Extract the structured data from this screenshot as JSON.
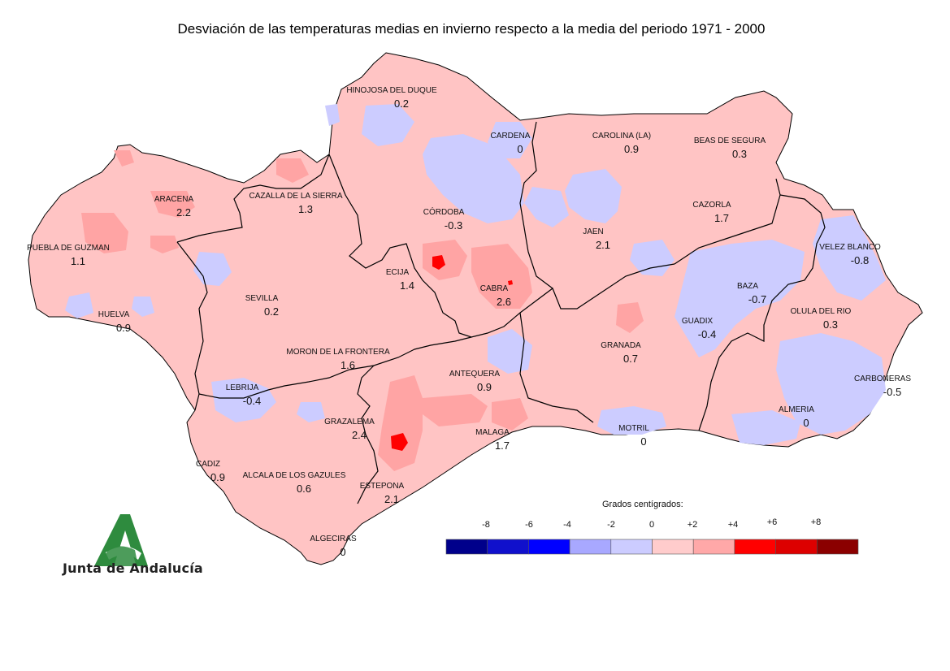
{
  "title": "Desviación de las temperaturas medias en invierno respecto a la media del periodo 1971 - 2000",
  "legend": {
    "title": "Grados centígrados:",
    "ticks": [
      "-8",
      "-6",
      "-4",
      "-2",
      "0",
      "+2",
      "+4",
      "+6",
      "+8"
    ],
    "colors": [
      "#00008b",
      "#1010cc",
      "#0000ff",
      "#a8a8ff",
      "#ccccff",
      "#ffcccc",
      "#ffa8a8",
      "#ff0000",
      "#dd0000",
      "#8b0000"
    ]
  },
  "colors": {
    "land_positive": "#ffc4c4",
    "land_negative": "#ccccff",
    "patch_warm": "#ffa4a4",
    "patch_hot": "#ff0000",
    "border": "#000000",
    "logo_green": "#2e8b3e"
  },
  "stations": [
    {
      "name": "HINOJOSA DEL DUQUE",
      "value": "0.2"
    },
    {
      "name": "CARDENA",
      "value": "0"
    },
    {
      "name": "CAROLINA (LA)",
      "value": "0.9"
    },
    {
      "name": "BEAS DE SEGURA",
      "value": "0.3"
    },
    {
      "name": "ARACENA",
      "value": "2.2"
    },
    {
      "name": "CAZALLA DE LA SIERRA",
      "value": "1.3"
    },
    {
      "name": "CÓRDOBA",
      "value": "-0.3"
    },
    {
      "name": "CAZORLA",
      "value": "1.7"
    },
    {
      "name": "JAEN",
      "value": "2.1"
    },
    {
      "name": "PUEBLA DE GUZMAN",
      "value": "1.1"
    },
    {
      "name": "VELEZ BLANCO",
      "value": "-0.8"
    },
    {
      "name": "ECIJA",
      "value": "1.4"
    },
    {
      "name": "CABRA",
      "value": "2.6"
    },
    {
      "name": "BAZA",
      "value": "-0.7"
    },
    {
      "name": "SEVILLA",
      "value": "0.2"
    },
    {
      "name": "HUELVA",
      "value": "0.9"
    },
    {
      "name": "OLULA DEL RIO",
      "value": "0.3"
    },
    {
      "name": "GUADIX",
      "value": "-0.4"
    },
    {
      "name": "GRANADA",
      "value": "0.7"
    },
    {
      "name": "MORON DE LA FRONTERA",
      "value": "1.6"
    },
    {
      "name": "ANTEQUERA",
      "value": "0.9"
    },
    {
      "name": "CARBONERAS",
      "value": "-0.5"
    },
    {
      "name": "LEBRIJA",
      "value": "-0.4"
    },
    {
      "name": "ALMERIA",
      "value": "0"
    },
    {
      "name": "GRAZALEMA",
      "value": "2.4"
    },
    {
      "name": "MALAGA",
      "value": "1.7"
    },
    {
      "name": "MOTRIL",
      "value": "0"
    },
    {
      "name": "CADIZ",
      "value": "0.9"
    },
    {
      "name": "ALCALA DE LOS GAZULES",
      "value": "0.6"
    },
    {
      "name": "ESTEPONA",
      "value": "2.1"
    },
    {
      "name": "ALGECIRAS",
      "value": "0"
    }
  ],
  "logo": {
    "text": "Junta de Andalucía"
  }
}
